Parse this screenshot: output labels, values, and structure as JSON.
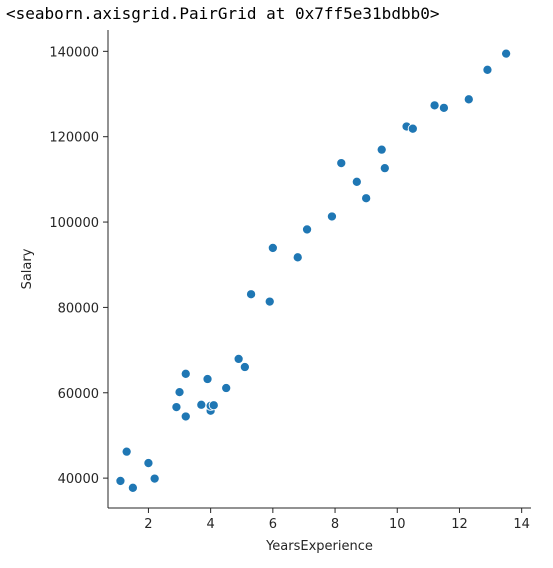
{
  "output": {
    "repr_text": "<seaborn.axisgrid.PairGrid at 0x7ff5e31bdbb0>"
  },
  "colors": {
    "marker": "#1f77b4",
    "marker_edge": "#ffffff",
    "axis": "#262626",
    "text": "#262626"
  },
  "chart_data": {
    "type": "scatter",
    "xlabel": "YearsExperience",
    "ylabel": "Salary",
    "xlim": [
      0.7,
      14.3
    ],
    "ylim": [
      33000,
      145000
    ],
    "xticks": [
      2,
      4,
      6,
      8,
      10,
      12,
      14
    ],
    "yticks": [
      40000,
      60000,
      80000,
      100000,
      120000,
      140000
    ],
    "grid": false,
    "points": [
      {
        "x": 1.1,
        "y": 39343
      },
      {
        "x": 1.3,
        "y": 46205
      },
      {
        "x": 1.5,
        "y": 37731
      },
      {
        "x": 2.0,
        "y": 43525
      },
      {
        "x": 2.2,
        "y": 39891
      },
      {
        "x": 2.9,
        "y": 56642
      },
      {
        "x": 3.0,
        "y": 60150
      },
      {
        "x": 3.2,
        "y": 54445
      },
      {
        "x": 3.2,
        "y": 64445
      },
      {
        "x": 3.7,
        "y": 57189
      },
      {
        "x": 3.9,
        "y": 63218
      },
      {
        "x": 4.0,
        "y": 55794
      },
      {
        "x": 4.0,
        "y": 56957
      },
      {
        "x": 4.1,
        "y": 57081
      },
      {
        "x": 4.5,
        "y": 61111
      },
      {
        "x": 4.9,
        "y": 67938
      },
      {
        "x": 5.1,
        "y": 66029
      },
      {
        "x": 5.3,
        "y": 83088
      },
      {
        "x": 5.9,
        "y": 81363
      },
      {
        "x": 6.0,
        "y": 93940
      },
      {
        "x": 6.8,
        "y": 91738
      },
      {
        "x": 7.1,
        "y": 98273
      },
      {
        "x": 7.9,
        "y": 101302
      },
      {
        "x": 8.2,
        "y": 113812
      },
      {
        "x": 8.7,
        "y": 109431
      },
      {
        "x": 9.0,
        "y": 105582
      },
      {
        "x": 9.5,
        "y": 116969
      },
      {
        "x": 9.6,
        "y": 112635
      },
      {
        "x": 10.3,
        "y": 122391
      },
      {
        "x": 10.5,
        "y": 121872
      },
      {
        "x": 11.2,
        "y": 127345
      },
      {
        "x": 11.5,
        "y": 126756
      },
      {
        "x": 12.3,
        "y": 128765
      },
      {
        "x": 12.9,
        "y": 135675
      },
      {
        "x": 13.5,
        "y": 139465
      }
    ]
  }
}
